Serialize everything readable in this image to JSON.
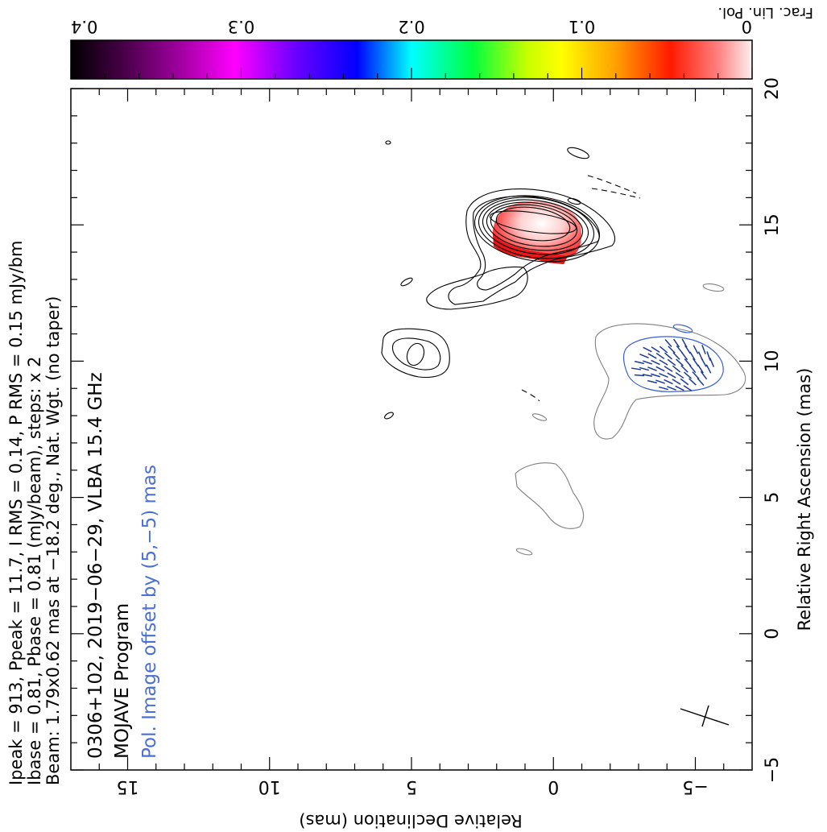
{
  "header": {
    "line1": "Ipeak = 913, Ppeak = 11.7, I RMS = 0.14, P RMS = 0.15 mJy/bm",
    "line2": "Ibase = 0.81, Pbase = 0.81 (mJy/beam), steps: x 2",
    "line3": "Beam: 1.79x0.62 mas at −18.2 deg., Nat. Wgt. (no taper)"
  },
  "panel_text": {
    "title": "0306+102, 2019−06−29, VLBA 15.4 GHz",
    "program": "MOJAVE Program",
    "pol_note": "Pol. Image offset by (5,−5) mas"
  },
  "colors": {
    "pol_note": "#4a6fd6",
    "pol_contour": "#3b5fd0",
    "offset_contour": "#7f7f7f",
    "ticks": "#1a3a9a"
  },
  "chart_data": {
    "type": "contour",
    "title": "0306+102, 2019−06−29, VLBA 15.4 GHz",
    "xlabel": "Relative Right Ascension (mas)",
    "ylabel": "Relative Declination (mas)",
    "xlim": [
      20,
      -5
    ],
    "ylim": [
      -7,
      17
    ],
    "x_ticks": [
      {
        "v": 20,
        "label": "20"
      },
      {
        "v": 15,
        "label": "15"
      },
      {
        "v": 10,
        "label": "10"
      },
      {
        "v": 5,
        "label": "5"
      },
      {
        "v": 0,
        "label": "0"
      },
      {
        "v": -5,
        "label": "−5"
      }
    ],
    "y_ticks": [
      {
        "v": 15,
        "label": "15"
      },
      {
        "v": 10,
        "label": "10"
      },
      {
        "v": 5,
        "label": "5"
      },
      {
        "v": 0,
        "label": "0"
      },
      {
        "v": -5,
        "label": "−5"
      }
    ],
    "colorbar": {
      "label": "Frac. Lin. Pol.",
      "range": [
        0.4,
        0
      ],
      "ticks": [
        {
          "v": 0.4,
          "label": "0.4"
        },
        {
          "v": 0.3,
          "label": "0.3"
        },
        {
          "v": 0.2,
          "label": "0.2"
        },
        {
          "v": 0.1,
          "label": "0.1"
        },
        {
          "v": 0,
          "label": "0"
        }
      ]
    },
    "peak_intensity_mJy_per_beam": 913,
    "peak_pol_mJy_per_beam": 11.7,
    "contour_base_mJy_per_beam": 0.81,
    "contour_step_factor": 2,
    "beam": {
      "major_mas": 1.79,
      "minor_mas": 0.62,
      "pa_deg": -18.2
    }
  }
}
